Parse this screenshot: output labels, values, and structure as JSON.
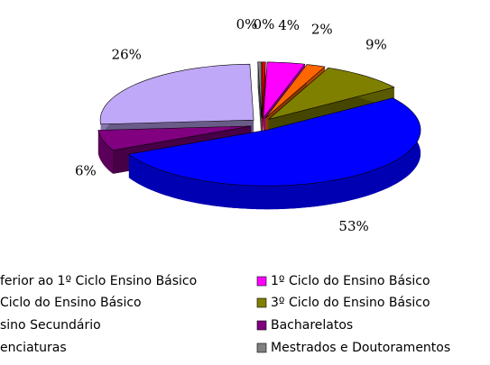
{
  "chart_data": {
    "type": "pie3d",
    "categories": [
      "ferior ao 1º Ciclo Ensino Básico",
      "1º Ciclo do Ensino Básico",
      "Ciclo do Ensino Básico",
      "3º Ciclo do Ensino Básico",
      "sino Secundário",
      "Bacharelatos",
      "enciaturas",
      "Mestrados e Doutoramentos"
    ],
    "values": [
      0.4,
      4,
      2,
      9,
      53,
      6,
      26,
      0.4
    ],
    "value_labels": [
      "0%",
      "4%",
      "2%",
      "9%",
      "53%",
      "6%",
      "26%",
      "0%"
    ],
    "colors": [
      "#e00000",
      "#ff00ff",
      "#ff6600",
      "#808000",
      "#0000ff",
      "#800080",
      "#c0a8f8",
      "#808080"
    ]
  }
}
